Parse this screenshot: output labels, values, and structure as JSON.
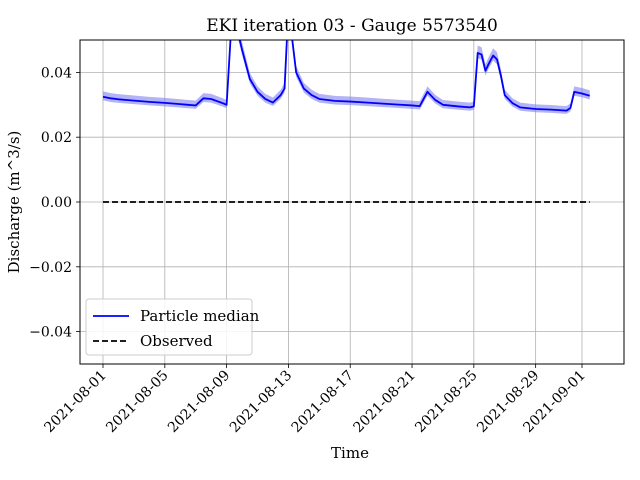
{
  "chart_data": {
    "type": "line",
    "title": "EKI iteration 03 - Gauge 5573540",
    "xlabel": "Time",
    "ylabel": "Discharge (m^3/s)",
    "xlim": [
      "2021-08-01",
      "2021-09-01"
    ],
    "ylim": [
      -0.05,
      0.05
    ],
    "grid": true,
    "legend": "lower-left",
    "x_ticks": [
      "2021-08-01",
      "2021-08-05",
      "2021-08-09",
      "2021-08-13",
      "2021-08-17",
      "2021-08-21",
      "2021-08-25",
      "2021-08-29",
      "2021-09-01"
    ],
    "y_ticks": [
      "0.04",
      "0.02",
      "0.00",
      "−0.02",
      "−0.04"
    ],
    "y_tick_values": [
      0.04,
      0.02,
      0.0,
      -0.02,
      -0.04
    ],
    "colors": {
      "median": "#0000ff",
      "band": "#8080ee",
      "observed": "#000000",
      "grid": "#b0b0b0"
    },
    "series": [
      {
        "name": "Particle median",
        "style": "solid",
        "x": [
          "2021-08-01",
          "2021-08-01 12:00",
          "2021-08-02",
          "2021-08-03",
          "2021-08-04",
          "2021-08-05",
          "2021-08-06",
          "2021-08-06 12:00",
          "2021-08-06 18:00",
          "2021-08-07",
          "2021-08-07 12:00",
          "2021-08-08",
          "2021-08-08 18:00",
          "2021-08-09",
          "2021-08-09 06:00",
          "2021-08-09 12:00",
          "2021-08-09 18:00",
          "2021-08-10",
          "2021-08-10 12:00",
          "2021-08-11",
          "2021-08-11 12:00",
          "2021-08-12",
          "2021-08-12 12:00",
          "2021-08-12 18:00",
          "2021-08-13",
          "2021-08-13 12:00",
          "2021-08-14",
          "2021-08-14 12:00",
          "2021-08-15",
          "2021-08-16",
          "2021-08-17",
          "2021-08-18",
          "2021-08-19",
          "2021-08-20",
          "2021-08-21",
          "2021-08-21 12:00",
          "2021-08-22",
          "2021-08-22 12:00",
          "2021-08-23",
          "2021-08-24",
          "2021-08-24 18:00",
          "2021-08-25",
          "2021-08-25 06:00",
          "2021-08-25 12:00",
          "2021-08-25 18:00",
          "2021-08-26",
          "2021-08-26 06:00",
          "2021-08-26 12:00",
          "2021-08-26 18:00",
          "2021-08-27",
          "2021-08-27 12:00",
          "2021-08-28",
          "2021-08-29",
          "2021-08-30",
          "2021-08-31",
          "2021-08-31 06:00",
          "2021-08-31 12:00",
          "2021-09-01",
          "2021-09-01 12:00"
        ],
        "y": [
          0.0325,
          0.032,
          0.0317,
          0.0313,
          0.0309,
          0.0306,
          0.0302,
          0.03,
          0.0299,
          0.0298,
          0.032,
          0.0318,
          0.0305,
          0.03,
          0.05,
          0.064,
          0.052,
          0.047,
          0.038,
          0.034,
          0.0318,
          0.0307,
          0.033,
          0.035,
          0.06,
          0.04,
          0.035,
          0.033,
          0.0318,
          0.0312,
          0.031,
          0.0307,
          0.0304,
          0.0301,
          0.0298,
          0.0296,
          0.034,
          0.0315,
          0.03,
          0.0295,
          0.0292,
          0.0295,
          0.046,
          0.0455,
          0.0405,
          0.043,
          0.0452,
          0.044,
          0.039,
          0.033,
          0.0305,
          0.0292,
          0.0287,
          0.0285,
          0.0282,
          0.029,
          0.034,
          0.0335,
          0.0328
        ]
      },
      {
        "name": "Observed",
        "style": "dashed",
        "x": [
          "2021-08-01",
          "2021-09-01 12:00"
        ],
        "y": [
          0.0,
          0.0
        ]
      }
    ]
  }
}
